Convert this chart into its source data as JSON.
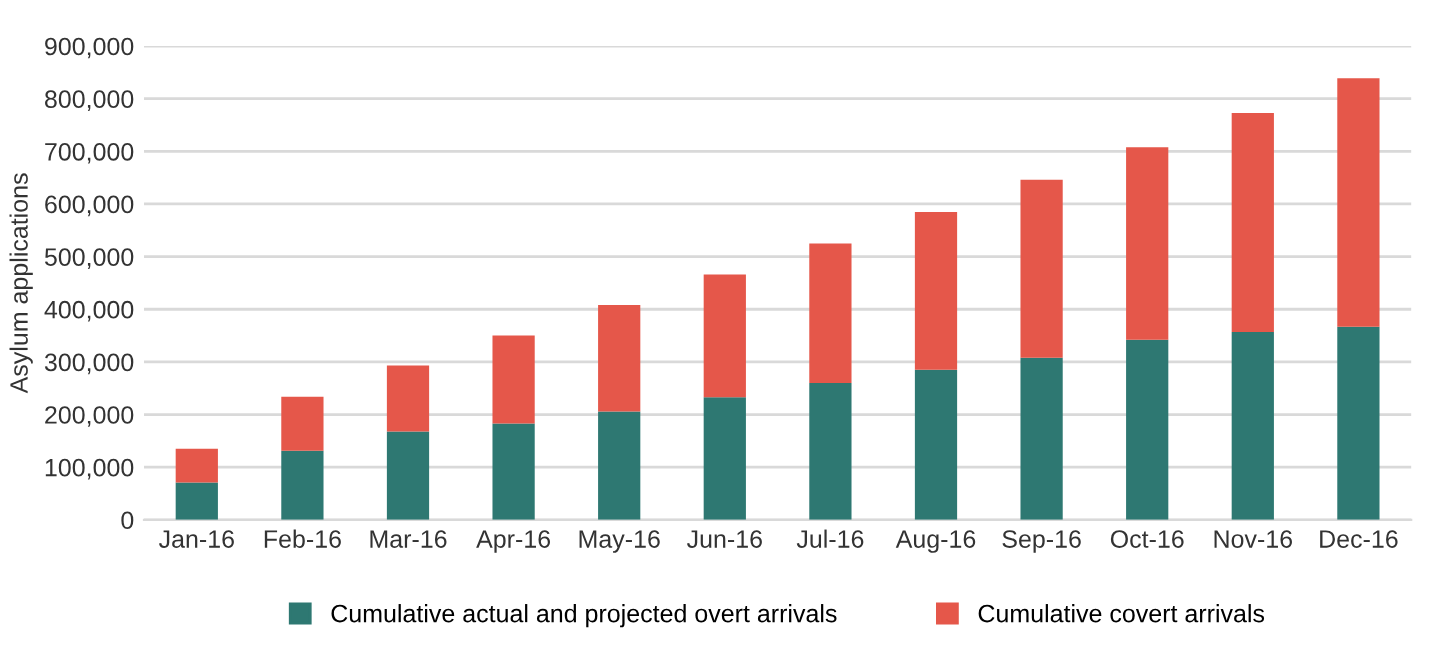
{
  "chart_data": {
    "type": "bar",
    "stacked": true,
    "ylabel": "Asylum applications",
    "categories": [
      "Jan-16",
      "Feb-16",
      "Mar-16",
      "Apr-16",
      "May-16",
      "Jun-16",
      "Jul-16",
      "Aug-16",
      "Sep-16",
      "Oct-16",
      "Nov-16",
      "Dec-16"
    ],
    "series": [
      {
        "name": "Cumulative actual and projected overt arrivals",
        "color": "#2e7872",
        "values": [
          71000,
          131000,
          168000,
          183000,
          206000,
          233000,
          260000,
          285000,
          308000,
          342000,
          357000,
          367000
        ]
      },
      {
        "name": "Cumulative covert arrivals",
        "color": "#e5574a",
        "values": [
          64000,
          103000,
          125000,
          167000,
          202000,
          233000,
          265000,
          300000,
          338000,
          366000,
          416000,
          472000
        ]
      }
    ],
    "ylim": [
      0,
      900000
    ],
    "yticks": [
      {
        "value": 0,
        "label": "0"
      },
      {
        "value": 100000,
        "label": "100,000"
      },
      {
        "value": 200000,
        "label": "200,000"
      },
      {
        "value": 300000,
        "label": "300,000"
      },
      {
        "value": 400000,
        "label": "400,000"
      },
      {
        "value": 500000,
        "label": "500,000"
      },
      {
        "value": 600000,
        "label": "600,000"
      },
      {
        "value": 700000,
        "label": "700,000"
      },
      {
        "value": 800000,
        "label": "800,000"
      },
      {
        "value": 900000,
        "label": "900,000"
      }
    ],
    "grid": "y",
    "legend": "bottom"
  }
}
